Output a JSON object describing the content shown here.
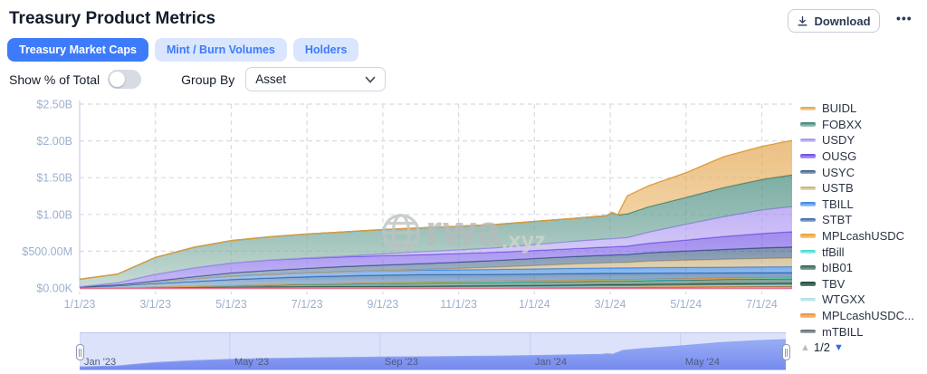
{
  "header": {
    "title": "Treasury Product Metrics",
    "download_label": "Download",
    "more_label": "•••"
  },
  "tabs": [
    {
      "label": "Treasury Market Caps",
      "active": true
    },
    {
      "label": "Mint / Burn Volumes",
      "active": false
    },
    {
      "label": "Holders",
      "active": false
    }
  ],
  "controls": {
    "toggle_label": "Show % of Total",
    "toggle_on": false,
    "group_by_label": "Group By",
    "group_by_value": "Asset"
  },
  "watermark": {
    "name": "rwa",
    "tld": ".xyz"
  },
  "legend_pager": {
    "page": "1/2",
    "up_icon": "▲",
    "down_icon": "▼"
  },
  "chart_data": {
    "type": "area",
    "title": "Treasury Product Metrics — Treasury Market Caps",
    "stacked": true,
    "unit": "USD millions",
    "ylim": [
      0,
      2500
    ],
    "xlabel": "",
    "ylabel": "",
    "grid": "dashed",
    "legend_position": "right",
    "baseline_color": "#e0718a",
    "y_ticks": [
      {
        "label": "$0.00K",
        "value": 0
      },
      {
        "label": "$500.00M",
        "value": 500
      },
      {
        "label": "$1.00B",
        "value": 1000
      },
      {
        "label": "$1.50B",
        "value": 1500
      },
      {
        "label": "$2.00B",
        "value": 2000
      },
      {
        "label": "$2.50B",
        "value": 2500
      }
    ],
    "x_max": 18.8,
    "x_ticks": [
      {
        "label": "1/1/23",
        "month": 0
      },
      {
        "label": "3/1/23",
        "month": 2
      },
      {
        "label": "5/1/23",
        "month": 4
      },
      {
        "label": "7/1/23",
        "month": 6
      },
      {
        "label": "9/1/23",
        "month": 8
      },
      {
        "label": "11/1/23",
        "month": 10
      },
      {
        "label": "1/1/24",
        "month": 12
      },
      {
        "label": "3/1/24",
        "month": 14
      },
      {
        "label": "5/1/24",
        "month": 16
      },
      {
        "label": "7/1/24",
        "month": 18
      }
    ],
    "brush_ticks": [
      {
        "label": "Jan '23",
        "month": 0
      },
      {
        "label": "May '23",
        "month": 4
      },
      {
        "label": "Sep '23",
        "month": 8
      },
      {
        "label": "Jan '24",
        "month": 12
      },
      {
        "label": "May '24",
        "month": 16
      }
    ],
    "x": [
      0,
      1,
      2,
      3,
      4,
      5,
      6,
      7,
      8,
      9,
      10,
      11,
      12,
      13,
      13.9,
      14.05,
      14.2,
      14.45,
      15,
      16,
      17,
      18,
      18.8
    ],
    "series": [
      {
        "name": "BUIDL",
        "color": "#e09a3a",
        "fill": "#f6ddb0",
        "values": [
          0,
          0,
          0,
          0,
          0,
          0,
          0,
          0,
          0,
          0,
          0,
          0,
          0,
          0,
          0,
          0,
          0,
          245,
          285,
          335,
          420,
          450,
          470
        ]
      },
      {
        "name": "FOBXX",
        "color": "#2e7d6e",
        "fill": "#b5cfc7",
        "values": [
          100,
          115,
          230,
          280,
          305,
          315,
          325,
          330,
          330,
          325,
          320,
          318,
          315,
          310,
          316,
          358,
          318,
          322,
          345,
          365,
          395,
          415,
          430
        ]
      },
      {
        "name": "USDY",
        "color": "#9b84ee",
        "fill": "#ddd4fa",
        "values": [
          0,
          0,
          0,
          0,
          0,
          2,
          5,
          10,
          25,
          40,
          50,
          60,
          80,
          100,
          110,
          111,
          113,
          116,
          150,
          215,
          272,
          320,
          342
        ]
      },
      {
        "name": "OUSG",
        "color": "#6747e2",
        "fill": "#b6a6f3",
        "values": [
          2,
          30,
          90,
          120,
          135,
          140,
          138,
          132,
          128,
          122,
          118,
          112,
          110,
          108,
          112,
          112,
          113,
          114,
          128,
          150,
          175,
          196,
          208
        ]
      },
      {
        "name": "USYC",
        "color": "#31517a",
        "fill": "#9fb4cc",
        "values": [
          0,
          0,
          10,
          30,
          45,
          55,
          60,
          70,
          75,
          80,
          85,
          90,
          95,
          100,
          103,
          104,
          105,
          106,
          114,
          124,
          134,
          143,
          149
        ]
      },
      {
        "name": "USTB",
        "color": "#c2a772",
        "fill": "#ecdfc0",
        "values": [
          0,
          0,
          0,
          0,
          0,
          0,
          0,
          0,
          2,
          8,
          18,
          32,
          45,
          60,
          70,
          71,
          73,
          76,
          88,
          98,
          107,
          114,
          119
        ]
      },
      {
        "name": "TBILL",
        "color": "#2f7fe0",
        "fill": "#aecdf4",
        "values": [
          5,
          12,
          25,
          35,
          45,
          50,
          55,
          58,
          60,
          62,
          65,
          68,
          70,
          72,
          73,
          73,
          73,
          74,
          75,
          77,
          79,
          81,
          82
        ]
      },
      {
        "name": "STBT",
        "color": "#2a5f9e",
        "fill": "#9dbbd9",
        "values": [
          8,
          25,
          48,
          65,
          80,
          90,
          95,
          98,
          100,
          98,
          95,
          92,
          90,
          88,
          87,
          87,
          87,
          86,
          82,
          76,
          70,
          66,
          63
        ]
      },
      {
        "name": "MPLcashUSDC",
        "color": "#ef9a2e",
        "fill": "#f8cd8d",
        "values": [
          0,
          0,
          0,
          0,
          0,
          0,
          3,
          6,
          8,
          9,
          10,
          10,
          10,
          10,
          10,
          10,
          10,
          10,
          10,
          10,
          10,
          10,
          10
        ]
      },
      {
        "name": "tfBill",
        "color": "#35d6ca",
        "fill": "#aef2ec",
        "values": [
          0,
          0,
          0,
          0,
          2,
          4,
          5,
          6,
          6,
          6,
          6,
          6,
          6,
          6,
          6,
          6,
          6,
          6,
          6,
          7,
          7,
          7,
          7
        ]
      },
      {
        "name": "bIB01",
        "color": "#2e6150",
        "fill": "#8aa99c",
        "values": [
          0,
          2,
          6,
          12,
          18,
          24,
          30,
          34,
          38,
          42,
          44,
          46,
          48,
          50,
          51,
          51,
          52,
          52,
          54,
          56,
          58,
          60,
          61
        ]
      },
      {
        "name": "TBV",
        "color": "#1a4a40",
        "fill": "#5d877b",
        "values": [
          0,
          0,
          2,
          5,
          8,
          10,
          12,
          14,
          16,
          17,
          18,
          19,
          20,
          20,
          21,
          21,
          21,
          21,
          22,
          22,
          23,
          23,
          24
        ]
      },
      {
        "name": "WTGXX",
        "color": "#a5dce9",
        "fill": "#ddf2f7",
        "values": [
          0,
          0,
          0,
          0,
          0,
          0,
          0,
          0,
          0,
          0,
          0,
          0,
          2,
          4,
          6,
          6,
          6,
          6,
          8,
          10,
          12,
          14,
          15
        ]
      },
      {
        "name": "MPLcashUSDC...",
        "color": "#f08c2e",
        "fill": "#f8c488",
        "values": [
          3,
          4,
          5,
          5,
          6,
          6,
          6,
          6,
          6,
          6,
          6,
          6,
          6,
          6,
          6,
          6,
          6,
          6,
          6,
          6,
          6,
          6,
          6
        ]
      },
      {
        "name": "mTBILL",
        "color": "#57626f",
        "fill": "#aab2bb",
        "values": [
          0,
          0,
          0,
          0,
          0,
          0,
          0,
          0,
          0,
          2,
          4,
          6,
          8,
          10,
          12,
          12,
          12,
          12,
          14,
          16,
          18,
          20,
          21
        ]
      }
    ]
  }
}
